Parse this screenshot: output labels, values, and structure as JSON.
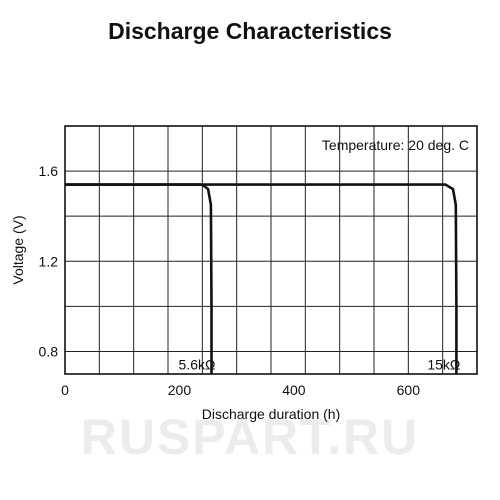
{
  "chart_data": {
    "type": "line",
    "title": "Discharge Characteristics",
    "xlabel": "Discharge duration (h)",
    "ylabel": "Voltage (V)",
    "xlim": [
      0,
      720
    ],
    "ylim": [
      0.7,
      1.8
    ],
    "x_ticks": [
      0,
      200,
      400,
      600
    ],
    "y_ticks": [
      0.8,
      1.2,
      1.6
    ],
    "y_tick_labels": [
      "0.8",
      "1.2",
      "1.6"
    ],
    "grid": true,
    "annotation": "Temperature: 20 deg. C",
    "series": [
      {
        "label": "5.6kΩ",
        "x": [
          0,
          240,
          250,
          255,
          256,
          256
        ],
        "y": [
          1.54,
          1.54,
          1.52,
          1.45,
          1.0,
          0.7
        ]
      },
      {
        "label": "15kΩ",
        "x": [
          0,
          665,
          678,
          683,
          684,
          684
        ],
        "y": [
          1.54,
          1.54,
          1.52,
          1.45,
          1.0,
          0.7
        ]
      }
    ]
  },
  "watermark": "RUSPART.RU"
}
